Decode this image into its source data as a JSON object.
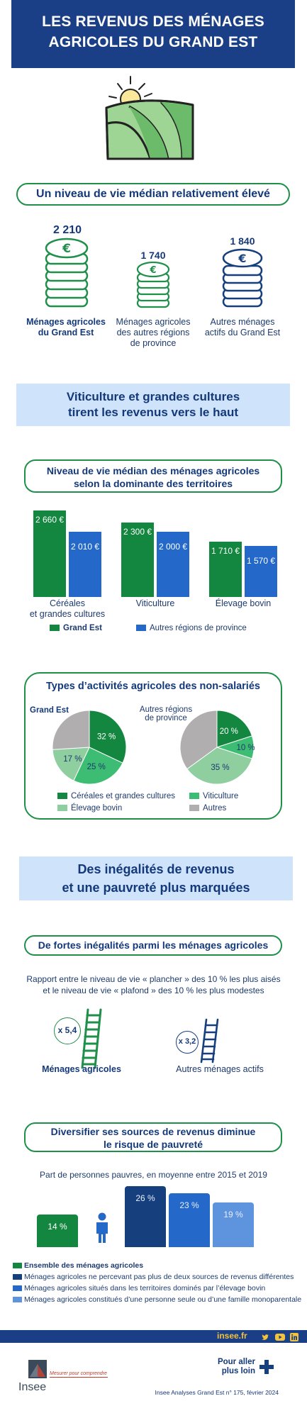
{
  "header": {
    "title_line1": "LES REVENUS DES MÉNAGES",
    "title_line2": "AGRICOLES DU GRAND EST"
  },
  "section1": {
    "heading": "Un niveau de vie médian relativement élevé",
    "items": [
      {
        "amount": "2 210",
        "label_line1": "Ménages agricoles",
        "label_line2": "du Grand Est",
        "label_line3": ""
      },
      {
        "amount": "1 740",
        "label_line1": "Ménages agricoles",
        "label_line2": "des autres régions",
        "label_line3": "de province"
      },
      {
        "amount": "1 840",
        "label_line1": "Autres ménages",
        "label_line2": "actifs du Grand Est",
        "label_line3": ""
      }
    ]
  },
  "band1": {
    "line1": "Viticulture et grandes cultures",
    "line2": "tirent les revenus vers le haut"
  },
  "chart1_heading": {
    "line1": "Niveau de vie médian des ménages agricoles",
    "line2": "selon la dominante des territoires"
  },
  "chart_data": [
    {
      "type": "bar",
      "categories": [
        "Céréales et grandes cultures",
        "Viticulture",
        "Élevage bovin"
      ],
      "category_lines": [
        [
          "Céréales",
          "et grandes cultures"
        ],
        [
          "Viticulture"
        ],
        [
          "Élevage bovin"
        ]
      ],
      "series": [
        {
          "name": "Grand Est",
          "values": [
            2660,
            2300,
            1710
          ],
          "labels": [
            "2 660 €",
            "2 300 €",
            "1 710 €"
          ],
          "color": "#13873f"
        },
        {
          "name": "Autres régions de province",
          "values": [
            2010,
            2000,
            1570
          ],
          "labels": [
            "2 010 €",
            "2 000 €",
            "1 570 €"
          ],
          "color": "#2468c9"
        }
      ]
    },
    {
      "type": "pie",
      "title": "Types d’activités agricoles des non-salariés",
      "categories": [
        "Céréales et grandes cultures",
        "Viticulture",
        "Élevage bovin",
        "Autres"
      ],
      "colors": [
        "#13873f",
        "#3dbd73",
        "#8fce9f",
        "#b0aeae"
      ],
      "pies": [
        {
          "name": "Grand Est",
          "values": [
            32,
            25,
            17,
            26
          ],
          "labels": [
            "32 %",
            "25 %",
            "17 %",
            ""
          ]
        },
        {
          "name": "Autres régions de province",
          "name_line1": "Autres régions",
          "name_line2": "de province",
          "values": [
            20,
            10,
            35,
            35
          ],
          "labels": [
            "20 %",
            "10 %",
            "35 %",
            ""
          ]
        }
      ]
    },
    {
      "type": "bar",
      "title": "Part de personnes pauvres, en moyenne entre 2015 et 2019",
      "categories": [
        "Ensemble des ménages agricoles",
        "Ménages agricoles ne percevant pas plus de deux sources de revenus différentes",
        "Ménages agricoles situés dans les territoires dominés par l’élevage bovin",
        "Ménages agricoles constitués d’une personne seule ou d’une famille monoparentale"
      ],
      "values": [
        14,
        26,
        23,
        19
      ],
      "labels": [
        "14 %",
        "26 %",
        "23 %",
        "19 %"
      ],
      "colors": [
        "#13873f",
        "#163f7e",
        "#2468c9",
        "#5e93dd"
      ]
    }
  ],
  "band2": {
    "line1": "Des inégalités de revenus",
    "line2": "et une pauvreté plus marquées"
  },
  "section3": {
    "heading": "De fortes inégalités parmi les ménages agricoles",
    "desc_line1": "Rapport entre le niveau de vie « plancher » des 10 % les plus aisés",
    "desc_line2": "et le niveau de vie « plafond » des 10 % les plus modestes",
    "left_ratio": "x 5,4",
    "left_label": "Ménages agricoles",
    "right_ratio": "x 3,2",
    "right_label": "Autres ménages actifs"
  },
  "section4": {
    "heading_line1": "Diversifier ses sources de revenus diminue",
    "heading_line2": "le risque de pauvreté"
  },
  "footer": {
    "site": "insee.fr",
    "tagline": "Mesurer pour comprendre",
    "logo_text": "Insee",
    "more_line1": "Pour aller",
    "more_line2": "plus loin",
    "reference": "Insee Analyses Grand Est n° 175, février 2024"
  }
}
